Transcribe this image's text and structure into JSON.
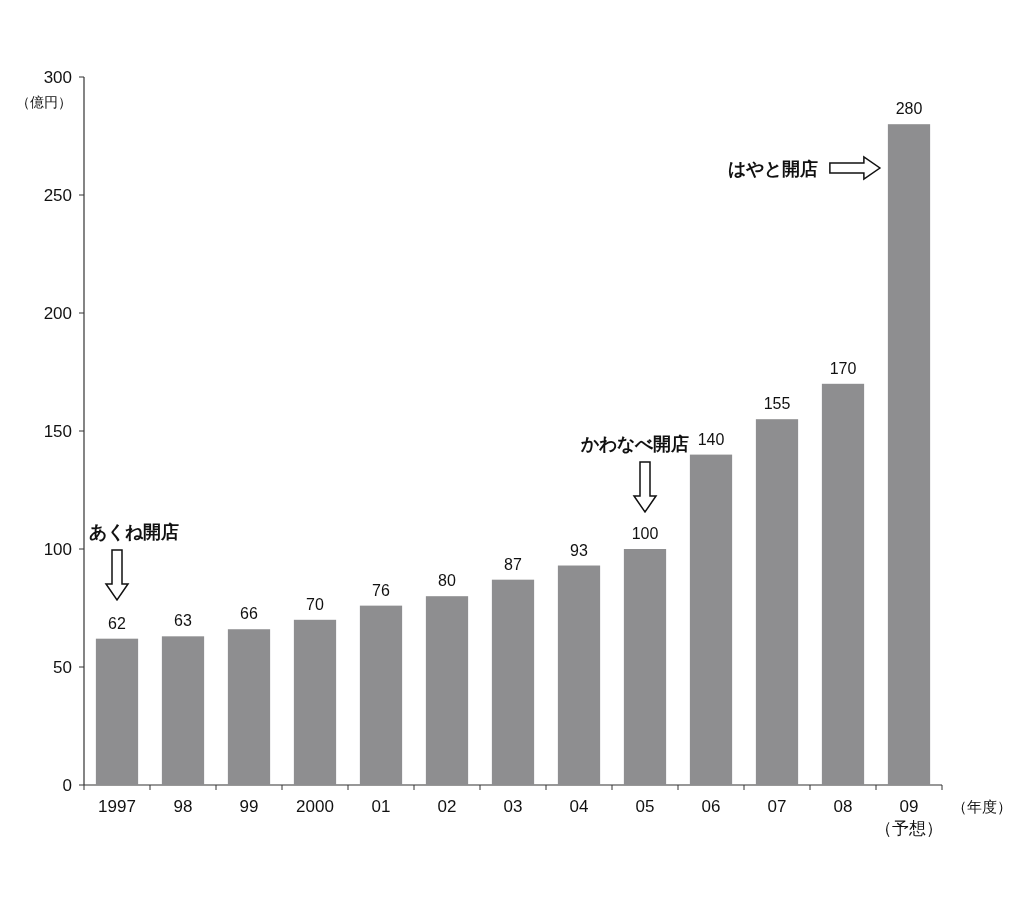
{
  "chart_data": {
    "type": "bar",
    "ylabel": "（億円）",
    "xlabel": "（年度）",
    "categories": [
      "1997",
      "98",
      "99",
      "2000",
      "01",
      "02",
      "03",
      "04",
      "05",
      "06",
      "07",
      "08",
      "09\n（予想）"
    ],
    "values": [
      62,
      63,
      66,
      70,
      76,
      80,
      87,
      93,
      100,
      140,
      155,
      170,
      280
    ],
    "color": "#8e8e90",
    "data_labels": true,
    "ylim": [
      0,
      300
    ],
    "yticks": [
      0,
      50,
      100,
      150,
      200,
      250,
      300
    ],
    "annotations": [
      "あくね開店",
      "かわなべ開店",
      "はやと開店"
    ]
  }
}
